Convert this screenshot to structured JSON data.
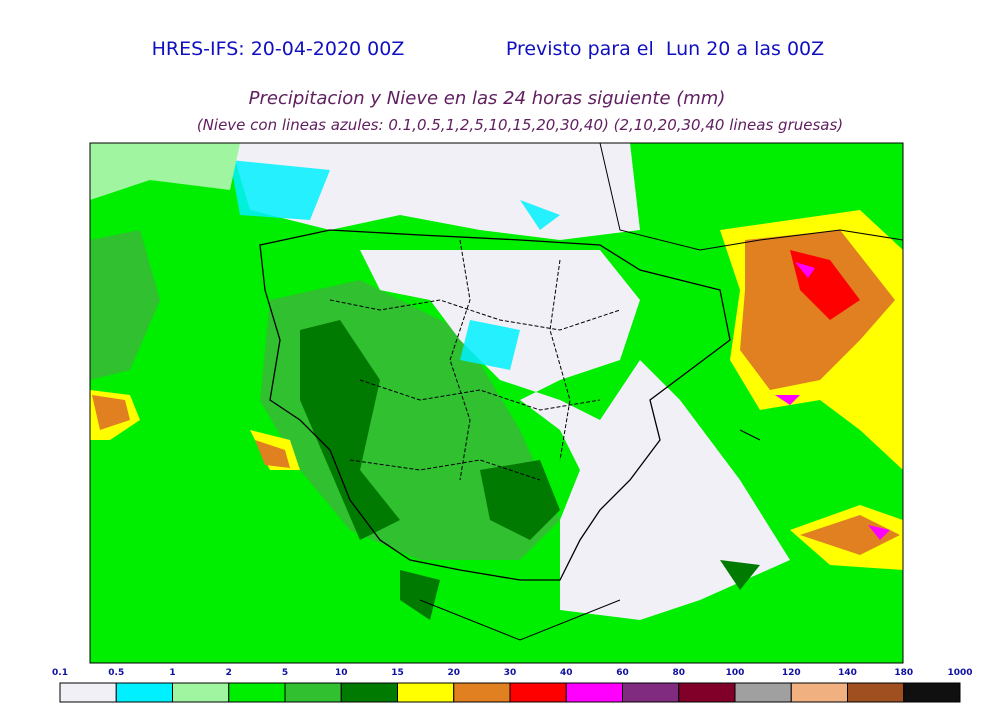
{
  "header": {
    "model_run": "HRES-IFS: 20-04-2020 00Z",
    "valid_for": "Previsto para el  Lun 20 a las 00Z",
    "title": "Precipitacion y Nieve en las 24 horas siguiente (mm)",
    "subtitle": "(Nieve con lineas azules: 0.1,0.5,1,2,5,10,15,20,30,40)  (2,10,20,30,40 lineas gruesas)"
  },
  "legend": {
    "ticks": [
      0.1,
      0.5,
      1,
      2,
      5,
      10,
      15,
      20,
      30,
      40,
      60,
      80,
      100,
      120,
      140,
      180,
      1000
    ],
    "colors": [
      "#f0f0f6",
      "#00f0ff",
      "#a0f5a0",
      "#00ee00",
      "#30c030",
      "#007a00",
      "#ffff00",
      "#e08020",
      "#ff0000",
      "#ff00ff",
      "#802a80",
      "#80002a",
      "#a0a0a0",
      "#f0b080",
      "#a05020",
      "#101010"
    ]
  }
}
